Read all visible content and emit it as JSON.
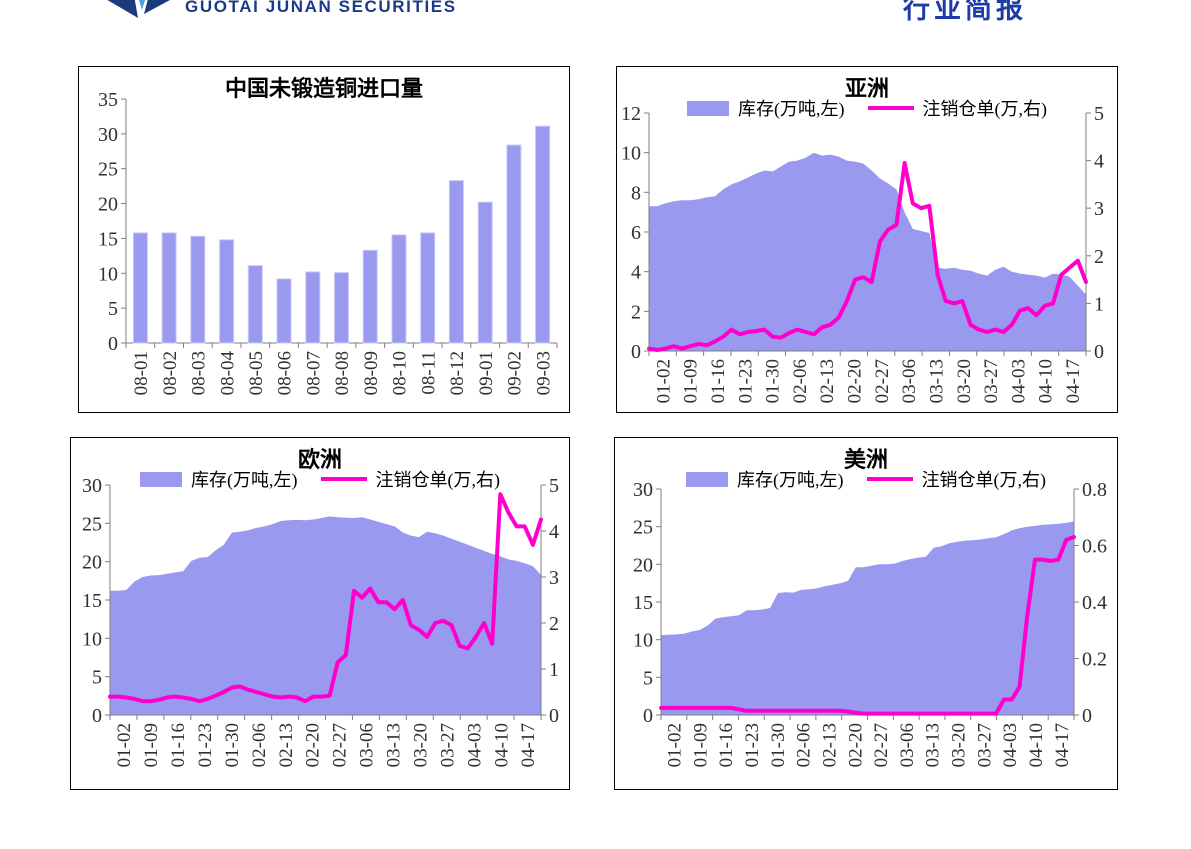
{
  "header": {
    "logo_text": "GUOTAI JUNAN SECURITIES",
    "report_type": "行业简报"
  },
  "colors": {
    "inventory_fill": "#9999f0",
    "bar_fill": "#9999f0",
    "bar_border": "#c9c9f7",
    "warrant_line": "#ff00cc",
    "axis": "#7f7f7f",
    "tick_label": "#303030",
    "brand_navy": "#1b3a86",
    "report_type_blue": "#1e3ba8"
  },
  "legend": {
    "inventory_label": "库存(万吨,左)",
    "warrant_label": "注销仓单(万,右)"
  },
  "chart_data": [
    {
      "id": "china-unwrought-copper-imports",
      "type": "bar",
      "title": "中国未锻造铜进口量",
      "categories": [
        "08-01",
        "08-02",
        "08-03",
        "08-04",
        "08-05",
        "08-06",
        "08-07",
        "08-08",
        "08-09",
        "08-10",
        "08-11",
        "08-12",
        "09-01",
        "09-02",
        "09-03"
      ],
      "values": [
        15.8,
        15.8,
        15.3,
        14.8,
        11.1,
        9.2,
        10.2,
        10.1,
        13.3,
        15.5,
        15.8,
        23.3,
        20.2,
        28.4,
        31.1
      ],
      "ylim": [
        0,
        35
      ],
      "yticks": [
        0,
        5,
        10,
        15,
        20,
        25,
        30,
        35
      ]
    },
    {
      "id": "asia",
      "type": "area-line",
      "title": "亚洲",
      "x_labels": [
        "01-02",
        "01-09",
        "01-16",
        "01-23",
        "01-30",
        "02-06",
        "02-13",
        "02-20",
        "02-27",
        "03-06",
        "03-13",
        "03-20",
        "03-27",
        "04-03",
        "04-10",
        "04-17"
      ],
      "left_axis": {
        "label": "库存(万吨,左)",
        "lim": [
          0,
          12
        ],
        "ticks": [
          0,
          2,
          4,
          6,
          8,
          10,
          12
        ]
      },
      "right_axis": {
        "label": "注销仓单(万,右)",
        "lim": [
          0,
          5
        ],
        "ticks": [
          0,
          1,
          2,
          3,
          4,
          5
        ]
      },
      "series": [
        {
          "name": "库存(万吨,左)",
          "axis": "left",
          "style": "area",
          "values": [
            7.3,
            7.3,
            7.45,
            7.55,
            7.6,
            7.6,
            7.65,
            7.75,
            7.8,
            8.15,
            8.4,
            8.55,
            8.75,
            8.95,
            9.1,
            9.05,
            9.3,
            9.55,
            9.6,
            9.75,
            10.0,
            9.85,
            9.9,
            9.8,
            9.6,
            9.55,
            9.45,
            9.1,
            8.7,
            8.45,
            8.15,
            7.0,
            6.15,
            6.05,
            5.95,
            4.2,
            4.15,
            4.2,
            4.1,
            4.05,
            3.9,
            3.8,
            4.1,
            4.25,
            4.0,
            3.9,
            3.85,
            3.8,
            3.7,
            3.9,
            3.85,
            3.75,
            3.3,
            2.85
          ]
        },
        {
          "name": "注销仓单(万,右)",
          "axis": "right",
          "style": "line",
          "values": [
            0.05,
            0.02,
            0.05,
            0.1,
            0.05,
            0.1,
            0.15,
            0.12,
            0.2,
            0.3,
            0.45,
            0.35,
            0.4,
            0.42,
            0.45,
            0.3,
            0.28,
            0.38,
            0.45,
            0.4,
            0.35,
            0.5,
            0.55,
            0.7,
            1.05,
            1.5,
            1.55,
            1.45,
            2.3,
            2.55,
            2.65,
            3.95,
            3.1,
            3.0,
            3.05,
            1.6,
            1.05,
            1.0,
            1.05,
            0.55,
            0.45,
            0.4,
            0.45,
            0.4,
            0.55,
            0.85,
            0.9,
            0.75,
            0.95,
            1.0,
            1.6,
            1.75,
            1.9,
            1.45
          ]
        }
      ]
    },
    {
      "id": "europe",
      "type": "area-line",
      "title": "欧洲",
      "x_labels": [
        "01-02",
        "01-09",
        "01-16",
        "01-23",
        "01-30",
        "02-06",
        "02-13",
        "02-20",
        "02-27",
        "03-06",
        "03-13",
        "03-20",
        "03-27",
        "04-03",
        "04-10",
        "04-17"
      ],
      "left_axis": {
        "label": "库存(万吨,左)",
        "lim": [
          0,
          30
        ],
        "ticks": [
          0,
          5,
          10,
          15,
          20,
          25,
          30
        ]
      },
      "right_axis": {
        "label": "注销仓单(万,右)",
        "lim": [
          0,
          5
        ],
        "ticks": [
          0,
          1,
          2,
          3,
          4,
          5
        ]
      },
      "series": [
        {
          "name": "库存(万吨,左)",
          "axis": "left",
          "style": "area",
          "values": [
            16.2,
            16.2,
            16.3,
            17.4,
            18.0,
            18.2,
            18.25,
            18.4,
            18.6,
            18.75,
            20.1,
            20.5,
            20.6,
            21.5,
            22.2,
            23.8,
            23.9,
            24.1,
            24.4,
            24.6,
            24.9,
            25.3,
            25.4,
            25.45,
            25.4,
            25.5,
            25.7,
            25.9,
            25.8,
            25.75,
            25.7,
            25.8,
            25.5,
            25.2,
            24.9,
            24.6,
            23.8,
            23.4,
            23.2,
            23.9,
            23.7,
            23.4,
            23.0,
            22.6,
            22.2,
            21.8,
            21.4,
            21.0,
            20.7,
            20.3,
            20.1,
            19.8,
            19.4,
            18.3
          ]
        },
        {
          "name": "注销仓单(万,右)",
          "axis": "right",
          "style": "line",
          "values": [
            0.4,
            0.4,
            0.38,
            0.35,
            0.3,
            0.3,
            0.33,
            0.38,
            0.4,
            0.38,
            0.35,
            0.3,
            0.35,
            0.42,
            0.5,
            0.6,
            0.62,
            0.55,
            0.5,
            0.45,
            0.4,
            0.38,
            0.4,
            0.38,
            0.3,
            0.4,
            0.4,
            0.42,
            1.15,
            1.3,
            2.7,
            2.55,
            2.75,
            2.45,
            2.45,
            2.3,
            2.5,
            1.95,
            1.85,
            1.7,
            2.0,
            2.05,
            1.95,
            1.5,
            1.45,
            1.7,
            2.0,
            1.55,
            4.8,
            4.4,
            4.1,
            4.1,
            3.7,
            4.25
          ]
        }
      ]
    },
    {
      "id": "america",
      "type": "area-line",
      "title": "美洲",
      "x_labels": [
        "01-02",
        "01-09",
        "01-16",
        "01-23",
        "01-30",
        "02-06",
        "02-13",
        "02-20",
        "02-27",
        "03-06",
        "03-13",
        "03-20",
        "03-27",
        "04-03",
        "04-10",
        "04-17"
      ],
      "left_axis": {
        "label": "库存(万吨,左)",
        "lim": [
          0,
          30
        ],
        "ticks": [
          0,
          5,
          10,
          15,
          20,
          25,
          30
        ]
      },
      "right_axis": {
        "label": "注销仓单(万,右)",
        "lim": [
          0,
          0.8
        ],
        "ticks": [
          0,
          0.2,
          0.4,
          0.6,
          0.8
        ]
      },
      "series": [
        {
          "name": "库存(万吨,左)",
          "axis": "left",
          "style": "area",
          "values": [
            10.6,
            10.65,
            10.7,
            10.8,
            11.1,
            11.3,
            11.9,
            12.8,
            13.0,
            13.1,
            13.25,
            13.9,
            13.9,
            14.0,
            14.2,
            16.2,
            16.3,
            16.25,
            16.6,
            16.7,
            16.8,
            17.1,
            17.3,
            17.5,
            17.8,
            19.6,
            19.6,
            19.8,
            20.0,
            20.0,
            20.1,
            20.45,
            20.7,
            20.9,
            21.0,
            22.2,
            22.4,
            22.8,
            23.0,
            23.15,
            23.2,
            23.3,
            23.45,
            23.6,
            24.0,
            24.5,
            24.8,
            25.0,
            25.1,
            25.25,
            25.3,
            25.4,
            25.5,
            25.7
          ]
        },
        {
          "name": "注销仓单(万,右)",
          "axis": "right",
          "style": "line",
          "values": [
            0.025,
            0.025,
            0.025,
            0.025,
            0.025,
            0.025,
            0.025,
            0.025,
            0.025,
            0.025,
            0.02,
            0.015,
            0.015,
            0.015,
            0.015,
            0.015,
            0.015,
            0.015,
            0.015,
            0.015,
            0.015,
            0.015,
            0.015,
            0.015,
            0.012,
            0.008,
            0.005,
            0.005,
            0.005,
            0.005,
            0.005,
            0.005,
            0.005,
            0.005,
            0.005,
            0.005,
            0.005,
            0.005,
            0.005,
            0.005,
            0.005,
            0.005,
            0.005,
            0.005,
            0.055,
            0.055,
            0.1,
            0.35,
            0.55,
            0.55,
            0.545,
            0.55,
            0.62,
            0.63
          ]
        }
      ]
    }
  ]
}
